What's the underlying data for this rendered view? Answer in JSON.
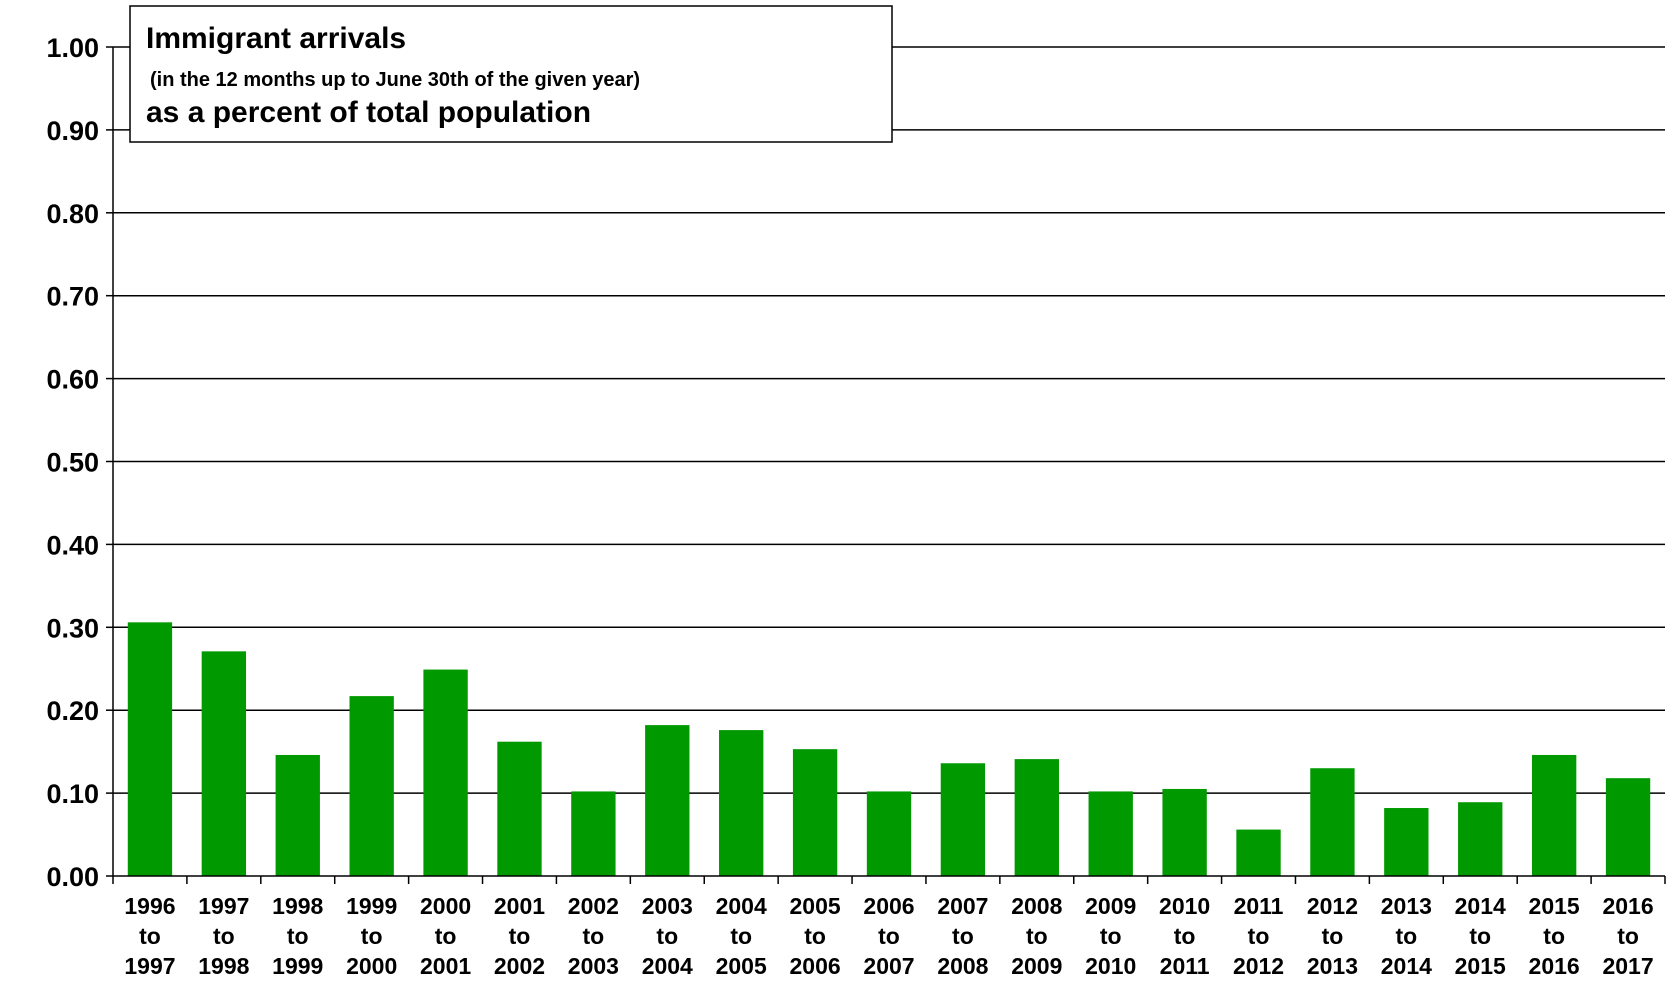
{
  "chart_data": {
    "type": "bar",
    "title": {
      "line1": "Immigrant arrivals",
      "line2": "(in the 12 months up to June 30th of the given year)",
      "line3": "as a percent of total population"
    },
    "xlabel": "",
    "ylabel": "",
    "ylim": [
      0,
      1.0
    ],
    "yticks": [
      "0.00",
      "0.10",
      "0.20",
      "0.30",
      "0.40",
      "0.50",
      "0.60",
      "0.70",
      "0.80",
      "0.90",
      "1.00"
    ],
    "grid": true,
    "categories": [
      [
        "1996",
        "to",
        "1997"
      ],
      [
        "1997",
        "to",
        "1998"
      ],
      [
        "1998",
        "to",
        "1999"
      ],
      [
        "1999",
        "to",
        "2000"
      ],
      [
        "2000",
        "to",
        "2001"
      ],
      [
        "2001",
        "to",
        "2002"
      ],
      [
        "2002",
        "to",
        "2003"
      ],
      [
        "2003",
        "to",
        "2004"
      ],
      [
        "2004",
        "to",
        "2005"
      ],
      [
        "2005",
        "to",
        "2006"
      ],
      [
        "2006",
        "to",
        "2007"
      ],
      [
        "2007",
        "to",
        "2008"
      ],
      [
        "2008",
        "to",
        "2009"
      ],
      [
        "2009",
        "to",
        "2010"
      ],
      [
        "2010",
        "to",
        "2011"
      ],
      [
        "2011",
        "to",
        "2012"
      ],
      [
        "2012",
        "to",
        "2013"
      ],
      [
        "2013",
        "to",
        "2014"
      ],
      [
        "2014",
        "to",
        "2015"
      ],
      [
        "2015",
        "to",
        "2016"
      ],
      [
        "2016",
        "to",
        "2017"
      ]
    ],
    "values": [
      0.306,
      0.271,
      0.146,
      0.217,
      0.249,
      0.162,
      0.102,
      0.182,
      0.176,
      0.153,
      0.102,
      0.136,
      0.141,
      0.102,
      0.105,
      0.056,
      0.13,
      0.082,
      0.089,
      0.146,
      0.118
    ],
    "bar_color": "#009900"
  }
}
